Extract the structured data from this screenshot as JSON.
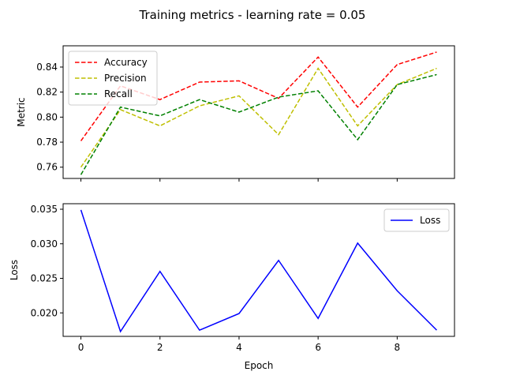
{
  "chart_data": {
    "title": "Training metrics - learning rate = 0.05",
    "x_label": "Epoch",
    "x": [
      0,
      1,
      2,
      3,
      4,
      5,
      6,
      7,
      8,
      9
    ],
    "x_ticks": [
      "0",
      "2",
      "4",
      "6",
      "8"
    ],
    "panels": [
      {
        "type": "line",
        "ylabel": "Metric",
        "ylim": [
          0.751,
          0.857
        ],
        "y_ticks": [
          "0.76",
          "0.78",
          "0.80",
          "0.82",
          "0.84"
        ],
        "legend_position": "upper-left",
        "series": [
          {
            "name": "Accuracy",
            "color": "#ff0000",
            "dash": "dashed",
            "values": [
              0.781,
              0.825,
              0.814,
              0.828,
              0.829,
              0.815,
              0.848,
              0.808,
              0.842,
              0.852
            ]
          },
          {
            "name": "Precision",
            "color": "#bfbf00",
            "dash": "dashed",
            "values": [
              0.76,
              0.806,
              0.793,
              0.809,
              0.817,
              0.786,
              0.839,
              0.793,
              0.826,
              0.839
            ]
          },
          {
            "name": "Recall",
            "color": "#008000",
            "dash": "dashed",
            "values": [
              0.754,
              0.808,
              0.801,
              0.814,
              0.804,
              0.816,
              0.821,
              0.782,
              0.826,
              0.834
            ]
          }
        ]
      },
      {
        "type": "line",
        "ylabel": "Loss",
        "ylim": [
          0.0166,
          0.0358
        ],
        "y_ticks": [
          "0.020",
          "0.025",
          "0.030",
          "0.035"
        ],
        "legend_position": "upper-right",
        "series": [
          {
            "name": "Loss",
            "color": "#0000ff",
            "dash": "solid",
            "values": [
              0.0349,
              0.0173,
              0.026,
              0.0175,
              0.0199,
              0.0276,
              0.0192,
              0.0301,
              0.0232,
              0.0175
            ]
          }
        ]
      }
    ]
  }
}
